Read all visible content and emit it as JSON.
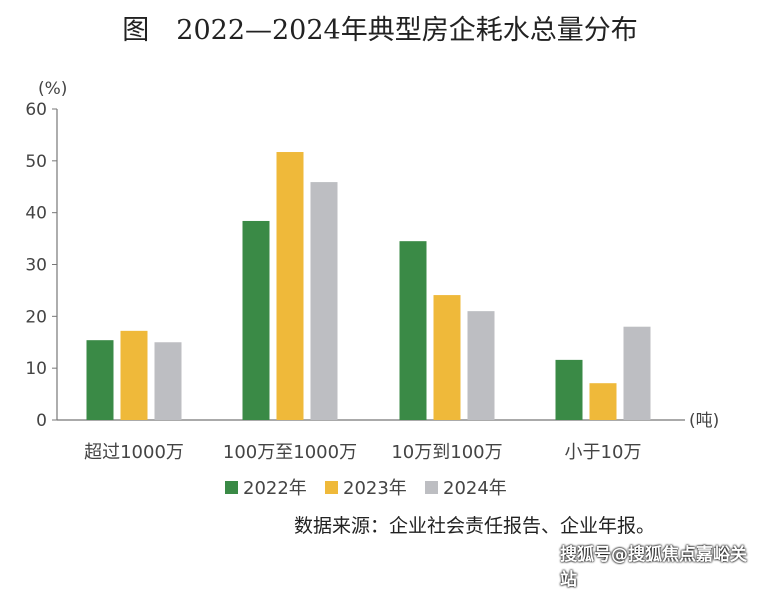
{
  "chart_data": {
    "type": "bar",
    "title": "图　2022—2024年典型房企耗水总量分布",
    "ylabel": "(%)",
    "xlabel": "(吨)",
    "ylim": [
      0,
      60
    ],
    "yticks": [
      0,
      10,
      20,
      30,
      40,
      50,
      60
    ],
    "categories": [
      "超过1000万",
      "100万至1000万",
      "10万到100万",
      "小于10万"
    ],
    "series": [
      {
        "name": "2022年",
        "color": "#3a8a46",
        "values": [
          15.4,
          38.4,
          34.5,
          11.6
        ]
      },
      {
        "name": "2023年",
        "color": "#efb93a",
        "values": [
          17.2,
          51.7,
          24.1,
          7.1
        ]
      },
      {
        "name": "2024年",
        "color": "#bdbec2",
        "values": [
          15.0,
          45.9,
          21.0,
          18.0
        ]
      }
    ],
    "legend": "bottom",
    "grid": false
  },
  "source": "数据来源：企业社会责任报告、企业年报。",
  "watermark": "搜狐号@搜狐焦点嘉峪关站"
}
